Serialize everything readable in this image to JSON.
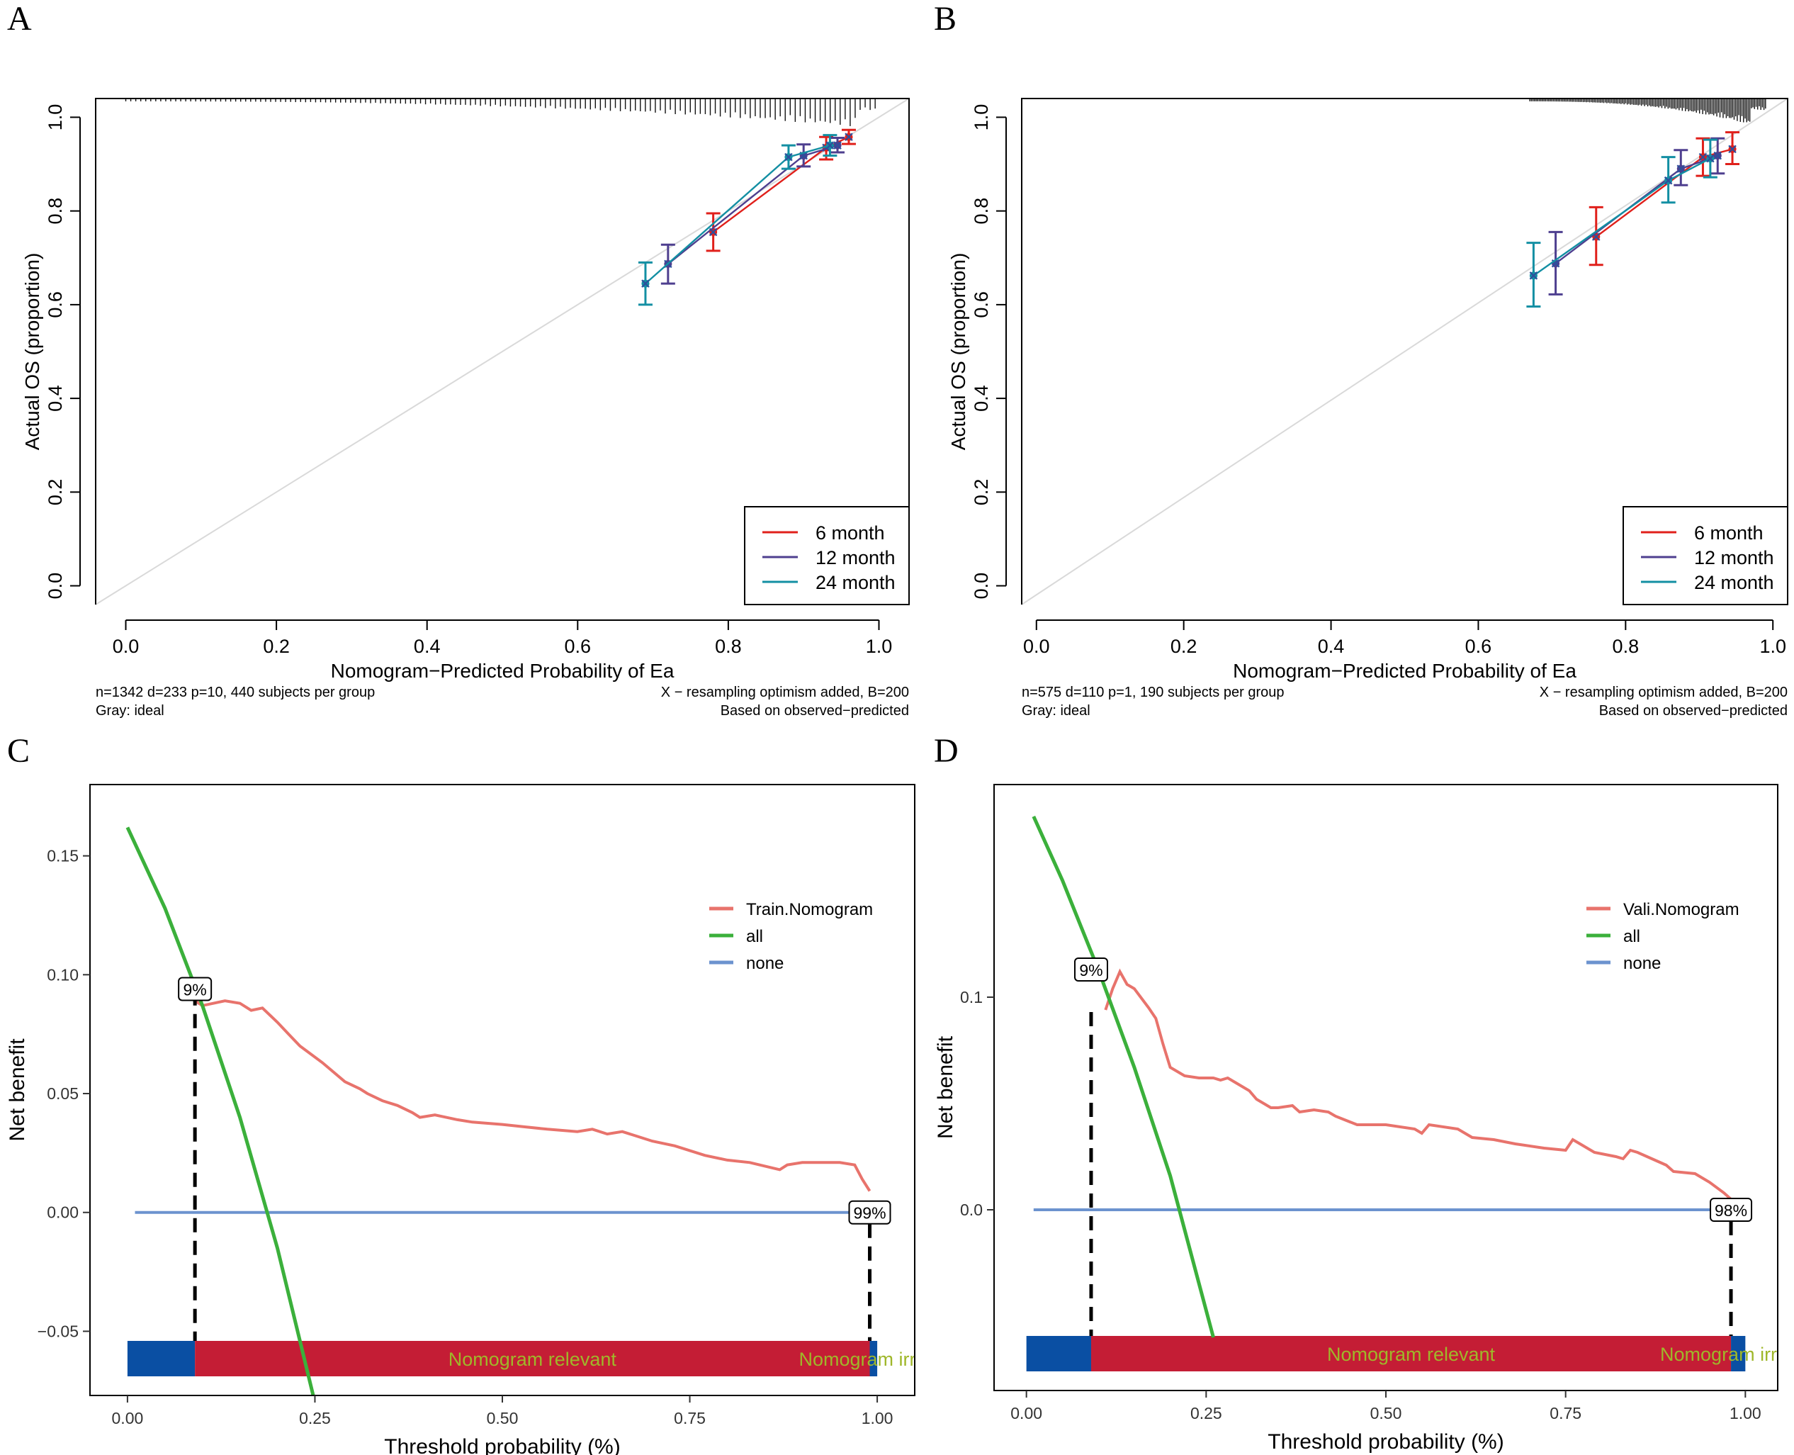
{
  "chart_data": [
    {
      "panel": "A",
      "type": "line",
      "xlabel": "Nomogram−Predicted Probability of Ea",
      "ylabel": "Actual OS (proportion)",
      "xlim": [
        -0.04,
        1.04
      ],
      "ylim": [
        -0.04,
        1.04
      ],
      "xticks": [
        0.0,
        0.2,
        0.4,
        0.6,
        0.8,
        1.0
      ],
      "xtick_labels": [
        "0.0",
        "0.2",
        "0.4",
        "0.6",
        "0.8",
        "1.0"
      ],
      "yticks": [
        0.0,
        0.2,
        0.4,
        0.6,
        0.8,
        1.0
      ],
      "ytick_labels": [
        "0.0",
        "0.2",
        "0.4",
        "0.6",
        "0.8",
        "1.0"
      ],
      "ideal_line": true,
      "legend": {
        "position": "bottom-right",
        "items": [
          "6 month",
          "12 month",
          "24 month"
        ]
      },
      "series": [
        {
          "name": "6 month",
          "color": "#e0201b",
          "x": [
            0.78,
            0.93,
            0.96
          ],
          "y": [
            0.755,
            0.935,
            0.958
          ],
          "lo": [
            0.715,
            0.91,
            0.943
          ],
          "hi": [
            0.795,
            0.958,
            0.973
          ]
        },
        {
          "name": "12 month",
          "color": "#4e3f8f",
          "x": [
            0.72,
            0.9,
            0.945
          ],
          "y": [
            0.687,
            0.918,
            0.94
          ],
          "lo": [
            0.645,
            0.895,
            0.925
          ],
          "hi": [
            0.728,
            0.942,
            0.956
          ]
        },
        {
          "name": "24 month",
          "color": "#138fa3",
          "x": [
            0.69,
            0.88,
            0.935
          ],
          "y": [
            0.645,
            0.915,
            0.94
          ],
          "lo": [
            0.6,
            0.89,
            0.918
          ],
          "hi": [
            0.69,
            0.94,
            0.962
          ]
        }
      ],
      "rug_x_min": 0.0,
      "rug_x_max": 0.995,
      "footnote_left": [
        "n=1342 d=233 p=10, 440 subjects per group",
        "Gray: ideal"
      ],
      "footnote_right": [
        "X − resampling optimism added, B=200",
        "Based on observed−predicted"
      ]
    },
    {
      "panel": "B",
      "type": "line",
      "xlabel": "Nomogram−Predicted Probability of Ea",
      "ylabel": "Actual OS (proportion)",
      "xlim": [
        -0.02,
        1.02
      ],
      "ylim": [
        -0.04,
        1.04
      ],
      "xticks": [
        0.0,
        0.2,
        0.4,
        0.6,
        0.8,
        1.0
      ],
      "xtick_labels": [
        "0.0",
        "0.2",
        "0.4",
        "0.6",
        "0.8",
        "1.0"
      ],
      "yticks": [
        0.0,
        0.2,
        0.4,
        0.6,
        0.8,
        1.0
      ],
      "ytick_labels": [
        "0.0",
        "0.2",
        "0.4",
        "0.6",
        "0.8",
        "1.0"
      ],
      "ideal_line": true,
      "legend": {
        "position": "bottom-right",
        "items": [
          "6 month",
          "12 month",
          "24 month"
        ]
      },
      "series": [
        {
          "name": "6 month",
          "color": "#e0201b",
          "x": [
            0.76,
            0.905,
            0.945
          ],
          "y": [
            0.745,
            0.915,
            0.932
          ],
          "lo": [
            0.685,
            0.875,
            0.9
          ],
          "hi": [
            0.808,
            0.955,
            0.968
          ]
        },
        {
          "name": "12 month",
          "color": "#4e3f8f",
          "x": [
            0.705,
            0.875,
            0.925
          ],
          "y": [
            0.688,
            0.89,
            0.918
          ],
          "lo": [
            0.622,
            0.855,
            0.88
          ],
          "hi": [
            0.755,
            0.93,
            0.955
          ]
        },
        {
          "name": "24 month",
          "color": "#138fa3",
          "x": [
            0.675,
            0.858,
            0.915
          ],
          "y": [
            0.662,
            0.865,
            0.912
          ],
          "lo": [
            0.596,
            0.818,
            0.872
          ],
          "hi": [
            0.732,
            0.915,
            0.952
          ]
        }
      ],
      "rug_x_min": 0.67,
      "rug_x_max": 0.99,
      "footnote_left": [
        "n=575 d=110 p=1, 190 subjects per group",
        "Gray: ideal"
      ],
      "footnote_right": [
        "X − resampling optimism added, B=200",
        "Based on observed−predicted"
      ]
    },
    {
      "panel": "C",
      "type": "line",
      "xlabel": "Threshold probability (%)",
      "ylabel": "Net benefit",
      "xlim": [
        -0.05,
        1.05
      ],
      "ylim": [
        -0.077,
        0.18
      ],
      "xticks": [
        0.0,
        0.25,
        0.5,
        0.75,
        1.0
      ],
      "xtick_labels": [
        "0.00",
        "0.25",
        "0.50",
        "0.75",
        "1.00"
      ],
      "yticks": [
        -0.05,
        0.0,
        0.05,
        0.1,
        0.15
      ],
      "ytick_labels": [
        "−0.05",
        "0.00",
        "0.05",
        "0.10",
        "0.15"
      ],
      "legend": {
        "position": "top-right",
        "items": [
          "Train.Nomogram",
          "all",
          "none"
        ]
      },
      "series": [
        {
          "name": "Train.Nomogram",
          "color": "#e8736c",
          "x": [
            0.09,
            0.1,
            0.13,
            0.15,
            0.165,
            0.18,
            0.2,
            0.215,
            0.23,
            0.26,
            0.29,
            0.31,
            0.32,
            0.34,
            0.36,
            0.38,
            0.39,
            0.41,
            0.44,
            0.46,
            0.5,
            0.53,
            0.56,
            0.6,
            0.62,
            0.64,
            0.66,
            0.68,
            0.7,
            0.73,
            0.77,
            0.8,
            0.83,
            0.87,
            0.88,
            0.9,
            0.95,
            0.97,
            0.98,
            0.99
          ],
          "y": [
            0.089,
            0.087,
            0.089,
            0.088,
            0.085,
            0.086,
            0.08,
            0.075,
            0.07,
            0.063,
            0.055,
            0.052,
            0.05,
            0.047,
            0.045,
            0.042,
            0.04,
            0.041,
            0.039,
            0.038,
            0.037,
            0.036,
            0.035,
            0.034,
            0.035,
            0.033,
            0.034,
            0.032,
            0.03,
            0.028,
            0.024,
            0.022,
            0.021,
            0.018,
            0.02,
            0.021,
            0.021,
            0.02,
            0.014,
            0.009
          ]
        },
        {
          "name": "all",
          "color": "#3bb03b",
          "x": [
            0.0,
            0.05,
            0.1,
            0.15,
            0.2,
            0.25
          ],
          "y": [
            0.162,
            0.128,
            0.087,
            0.04,
            -0.015,
            -0.08
          ]
        },
        {
          "name": "none",
          "color": "#6c93cf",
          "x": [
            0.01,
            0.99
          ],
          "y": [
            0.0,
            0.0
          ]
        }
      ],
      "threshold_labels": [
        {
          "x": 0.09,
          "label": "9%"
        },
        {
          "x": 0.99,
          "label": "99%"
        }
      ],
      "bar": [
        {
          "from": 0.0,
          "to": 0.09,
          "color": "#0a4fa3"
        },
        {
          "from": 0.09,
          "to": 0.99,
          "color": "#c41d35"
        },
        {
          "from": 0.99,
          "to": 1.0,
          "color": "#0a4fa3"
        }
      ],
      "bar_labels": [
        "Nomogram relevant",
        "Nomogram irrelevant"
      ]
    },
    {
      "panel": "D",
      "type": "line",
      "xlabel": "Threshold probability (%)",
      "ylabel": "Net benefit",
      "xlim": [
        -0.045,
        1.045
      ],
      "ylim": [
        -0.085,
        0.2
      ],
      "xticks": [
        0.0,
        0.25,
        0.5,
        0.75,
        1.0
      ],
      "xtick_labels": [
        "0.00",
        "0.25",
        "0.50",
        "0.75",
        "1.00"
      ],
      "yticks": [
        0.0,
        0.1
      ],
      "ytick_labels": [
        "0.0",
        "0.1"
      ],
      "legend": {
        "position": "top-right",
        "items": [
          "Vali.Nomogram",
          "all",
          "none"
        ]
      },
      "series": [
        {
          "name": "Vali.Nomogram",
          "color": "#e8736c",
          "x": [
            0.11,
            0.12,
            0.13,
            0.14,
            0.15,
            0.17,
            0.18,
            0.19,
            0.2,
            0.22,
            0.24,
            0.26,
            0.27,
            0.28,
            0.29,
            0.31,
            0.32,
            0.34,
            0.35,
            0.37,
            0.38,
            0.4,
            0.42,
            0.43,
            0.46,
            0.5,
            0.54,
            0.55,
            0.56,
            0.6,
            0.62,
            0.65,
            0.68,
            0.72,
            0.75,
            0.76,
            0.77,
            0.79,
            0.82,
            0.83,
            0.84,
            0.85,
            0.87,
            0.89,
            0.9,
            0.93,
            0.95,
            0.97,
            0.98
          ],
          "y": [
            0.094,
            0.104,
            0.112,
            0.106,
            0.104,
            0.095,
            0.09,
            0.078,
            0.067,
            0.063,
            0.062,
            0.062,
            0.061,
            0.062,
            0.06,
            0.056,
            0.052,
            0.048,
            0.048,
            0.049,
            0.046,
            0.047,
            0.046,
            0.044,
            0.04,
            0.04,
            0.038,
            0.036,
            0.04,
            0.038,
            0.034,
            0.033,
            0.031,
            0.029,
            0.028,
            0.033,
            0.031,
            0.027,
            0.025,
            0.024,
            0.028,
            0.027,
            0.024,
            0.021,
            0.018,
            0.017,
            0.013,
            0.008,
            0.005
          ]
        },
        {
          "name": "all",
          "color": "#3bb03b",
          "x": [
            0.01,
            0.05,
            0.1,
            0.15,
            0.2,
            0.26
          ],
          "y": [
            0.185,
            0.155,
            0.113,
            0.067,
            0.016,
            -0.06
          ]
        },
        {
          "name": "none",
          "color": "#6c93cf",
          "x": [
            0.01,
            0.98
          ],
          "y": [
            0.0,
            0.0
          ]
        }
      ],
      "threshold_labels": [
        {
          "x": 0.09,
          "label": "9%"
        },
        {
          "x": 0.98,
          "label": "98%"
        }
      ],
      "bar": [
        {
          "from": 0.0,
          "to": 0.09,
          "color": "#0a4fa3"
        },
        {
          "from": 0.09,
          "to": 0.98,
          "color": "#c41d35"
        },
        {
          "from": 0.98,
          "to": 1.0,
          "color": "#0a4fa3"
        }
      ],
      "bar_labels": [
        "Nomogram relevant",
        "Nomogram irrelevant"
      ]
    }
  ],
  "panel_letters": [
    "A",
    "B",
    "C",
    "D"
  ],
  "colors": {
    "ideal": "#d9d9d9",
    "bar_label": "#9fb72a",
    "axis": "#000000"
  }
}
